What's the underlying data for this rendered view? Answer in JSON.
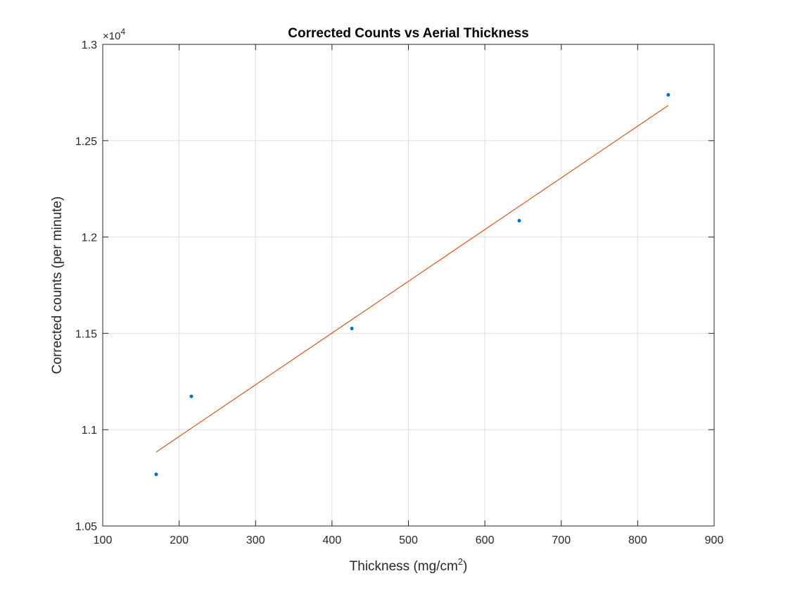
{
  "chart_data": {
    "type": "scatter",
    "title": "Corrected Counts vs Aerial Thickness",
    "xlabel_text": "Thickness (mg/cm",
    "xlabel_sup": "2",
    "xlabel_close": ")",
    "ylabel": "Corrected counts (per minute)",
    "y_exponent_label": "×10",
    "y_exponent_power": "4",
    "xlim": [
      100,
      900
    ],
    "ylim": [
      1.05,
      1.3
    ],
    "x_ticks": [
      100,
      200,
      300,
      400,
      500,
      600,
      700,
      800,
      900
    ],
    "y_ticks": [
      1.05,
      1.1,
      1.15,
      1.2,
      1.25,
      1.3
    ],
    "x_tick_labels": [
      "100",
      "200",
      "300",
      "400",
      "500",
      "600",
      "700",
      "800",
      "900"
    ],
    "y_tick_labels": [
      "1.05",
      "1.1",
      "1.15",
      "1.2",
      "1.25",
      "1.3"
    ],
    "grid": true,
    "series": [
      {
        "type": "scatter",
        "color": "#0072BD",
        "points": [
          {
            "x": 170,
            "y": 1.0768
          },
          {
            "x": 216,
            "y": 1.1173
          },
          {
            "x": 426,
            "y": 1.1525
          },
          {
            "x": 645,
            "y": 1.2085
          },
          {
            "x": 840,
            "y": 1.2738
          }
        ]
      },
      {
        "type": "line",
        "color": "#D95319",
        "points": [
          {
            "x": 170,
            "y": 1.0884
          },
          {
            "x": 840,
            "y": 1.2683
          }
        ]
      }
    ]
  }
}
